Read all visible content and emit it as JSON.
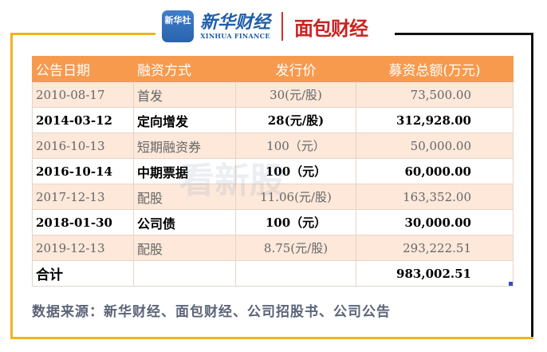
{
  "logos": {
    "xinhua_badge": "新华社",
    "xinhua_finance_cn": "新华财经",
    "xinhua_finance_en": "XINHUA FINANCE",
    "mianbao": "面包财经"
  },
  "watermark": "看新股",
  "table": {
    "headers": [
      "公告日期",
      "融资方式",
      "发行价",
      "募资总额(万元)"
    ],
    "rows": [
      {
        "date": "2010-08-17",
        "method": "首发",
        "price": "30(元/股)",
        "amount": "73,500.00"
      },
      {
        "date": "2014-03-12",
        "method": "定向增发",
        "price": "28(元/股)",
        "amount": "312,928.00"
      },
      {
        "date": "2016-10-13",
        "method": "短期融资券",
        "price": "100（元）",
        "amount": "50,000.00"
      },
      {
        "date": "2016-10-14",
        "method": "中期票据",
        "price": "100（元）",
        "amount": "60,000.00"
      },
      {
        "date": "2017-12-13",
        "method": "配股",
        "price": "11.06(元/股)",
        "amount": "163,352.00"
      },
      {
        "date": "2018-01-30",
        "method": "公司债",
        "price": "100（元）",
        "amount": "30,000.00"
      },
      {
        "date": "2019-12-13",
        "method": "配股",
        "price": "8.75(元/股)",
        "amount": "293,222.51"
      }
    ],
    "total": {
      "label": "合计",
      "amount": "983,002.51"
    }
  },
  "source": "数据来源：新华财经、面包财经、公司招股书、公司公告",
  "colors": {
    "header": "#f79a4e",
    "odd_row": "#fde8da",
    "frame_left": "#f0b41c",
    "frame_right": "#111111"
  }
}
